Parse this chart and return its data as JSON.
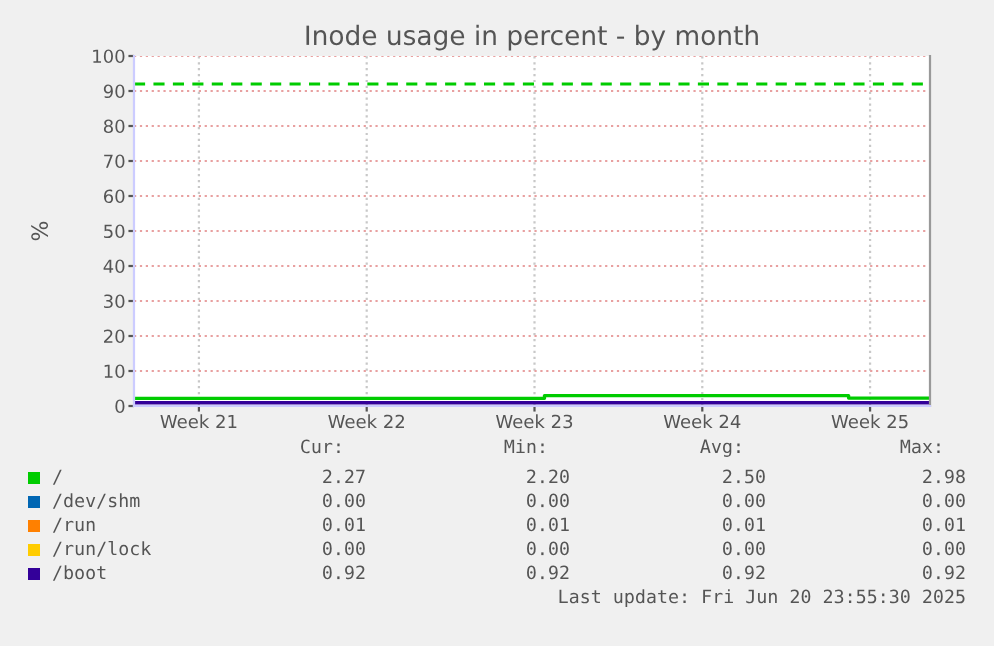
{
  "chart_data": {
    "type": "step",
    "title": "Inode usage in percent - by month",
    "ylabel": "%",
    "series": [
      {
        "name": "/",
        "color": "#00cc00",
        "x": [
          "2025-05-19T19:00",
          "2025-06-05T22:00",
          "2025-06-18T14:30",
          "2025-06-22T00:00"
        ],
        "values": [
          2.2,
          2.98,
          2.27,
          2.27
        ]
      },
      {
        "name": "/dev/shm",
        "color": "#0066b3",
        "values": [
          null,
          null
        ]
      },
      {
        "name": "/run",
        "color": "#ff8000",
        "values": [
          null,
          null
        ]
      },
      {
        "name": "/run/lock",
        "color": "#ffcc00",
        "values": [
          null,
          null
        ]
      },
      {
        "name": "/boot",
        "color": "#330099",
        "x": [
          "2025-05-19T19:00",
          "2025-06-22T00:00"
        ],
        "values": [
          0.92,
          0.92
        ]
      }
    ],
    "xlim": [
      "2025-05-19T19:00",
      "2025-06-22T00:00"
    ],
    "xticks": [
      {
        "value": "2025-05-22T12:00",
        "label": "Week 21"
      },
      {
        "value": "2025-05-29T12:00",
        "label": "Week 22"
      },
      {
        "value": "2025-06-05T12:00",
        "label": "Week 23"
      },
      {
        "value": "2025-06-12T12:00",
        "label": "Week 24"
      },
      {
        "value": "2025-06-19T12:00",
        "label": "Week 25"
      }
    ],
    "ylim": [
      0,
      100
    ],
    "yticks": [
      0,
      10,
      20,
      30,
      40,
      50,
      60,
      70,
      80,
      90,
      100
    ],
    "ref_lines": [
      {
        "axis": "y",
        "value": 92,
        "color": "#00cc00",
        "line_style": "dashed"
      }
    ],
    "grid": true,
    "legend": "bottom",
    "marker": "none",
    "line_style": "solid",
    "annotations": [
      "Cur:",
      "Min:",
      "Avg:",
      "Max:",
      "2.27",
      "2.20",
      "2.50",
      "2.98",
      "0.00",
      "0.00",
      "0.00",
      "0.00",
      "0.01",
      "0.01",
      "0.01",
      "0.01",
      "0.00",
      "0.00",
      "0.00",
      "0.00",
      "0.92",
      "0.92",
      "0.92",
      "0.92",
      "Last update: Fri Jun 20 23:55:30 2025"
    ]
  }
}
